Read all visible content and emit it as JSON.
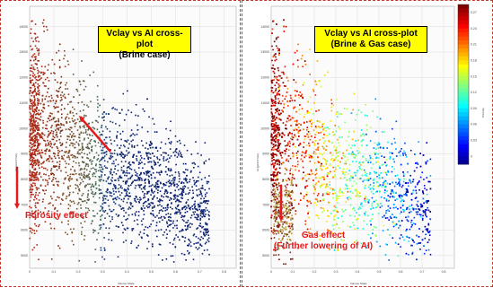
{
  "chart_data": [
    {
      "type": "scatter",
      "title_line1": "Vclay vs AI cross-plot",
      "title_line2": "(Brine case)",
      "xlabel": "Volume Shale",
      "ylabel": "AI (g/cm3*m/s)",
      "y_ticks": [
        5000,
        6000,
        7000,
        8000,
        9000,
        10000,
        11000,
        12000,
        13000,
        14000
      ],
      "x_ticks": [
        "0",
        "0.1",
        "0.2",
        "0.3",
        "0.4",
        "0.5",
        "0.6",
        "0.7",
        "0.8"
      ],
      "xlim": [
        0,
        0.85
      ],
      "ylim": [
        4500,
        14800
      ],
      "grid": true,
      "color_scale": "blue-to-red",
      "annotations": [
        {
          "text": "Porosity effect",
          "color": "#e41a1c"
        }
      ],
      "arrows": [
        {
          "direction": "down",
          "color": "#e41a1c"
        },
        {
          "direction": "up-left",
          "color": "#e41a1c"
        }
      ],
      "series": [
        {
          "trend": [
            [
              0.0,
              9400
            ],
            [
              0.05,
              9600
            ],
            [
              0.15,
              8900
            ],
            [
              0.25,
              8400
            ],
            [
              0.35,
              8200
            ],
            [
              0.45,
              7900
            ],
            [
              0.55,
              7500
            ],
            [
              0.65,
              7000
            ],
            [
              0.72,
              6800
            ]
          ]
        }
      ]
    },
    {
      "type": "scatter",
      "title_line1": "Vclay vs AI cross-plot",
      "title_line2": "(Brine  & Gas case)",
      "xlabel": "Volume Shale",
      "ylabel": "AI (g/cm3*m/s)",
      "y_ticks": [
        5000,
        6000,
        7000,
        8000,
        9000,
        10000,
        11000,
        12000,
        13000,
        14000
      ],
      "x_ticks": [
        "0",
        "0.1",
        "0.2",
        "0.3",
        "0.4",
        "0.5",
        "0.6",
        "0.7",
        "0.8"
      ],
      "xlim": [
        0,
        0.85
      ],
      "ylim": [
        4500,
        14800
      ],
      "grid": true,
      "color_scale": "blue-to-red",
      "colorbar_ticks": [
        "0.27",
        "0.24",
        "0.21",
        "0.18",
        "0.15",
        "0.12",
        "0.09",
        "0.06",
        "0.03",
        "0"
      ],
      "colorbar_label": "Porosity",
      "annotations": [
        {
          "text": "Gas effect",
          "color": "#e41a1c"
        },
        {
          "text": "(Further lowering of AI)",
          "color": "#e41a1c"
        }
      ],
      "arrows": [
        {
          "direction": "down",
          "color": "#e41a1c"
        }
      ],
      "series": [
        {
          "trend": [
            [
              0.0,
              9400
            ],
            [
              0.05,
              9600
            ],
            [
              0.15,
              8900
            ],
            [
              0.25,
              8400
            ],
            [
              0.35,
              8200
            ],
            [
              0.45,
              7900
            ],
            [
              0.55,
              7500
            ],
            [
              0.65,
              7000
            ],
            [
              0.72,
              6800
            ]
          ]
        }
      ]
    }
  ]
}
